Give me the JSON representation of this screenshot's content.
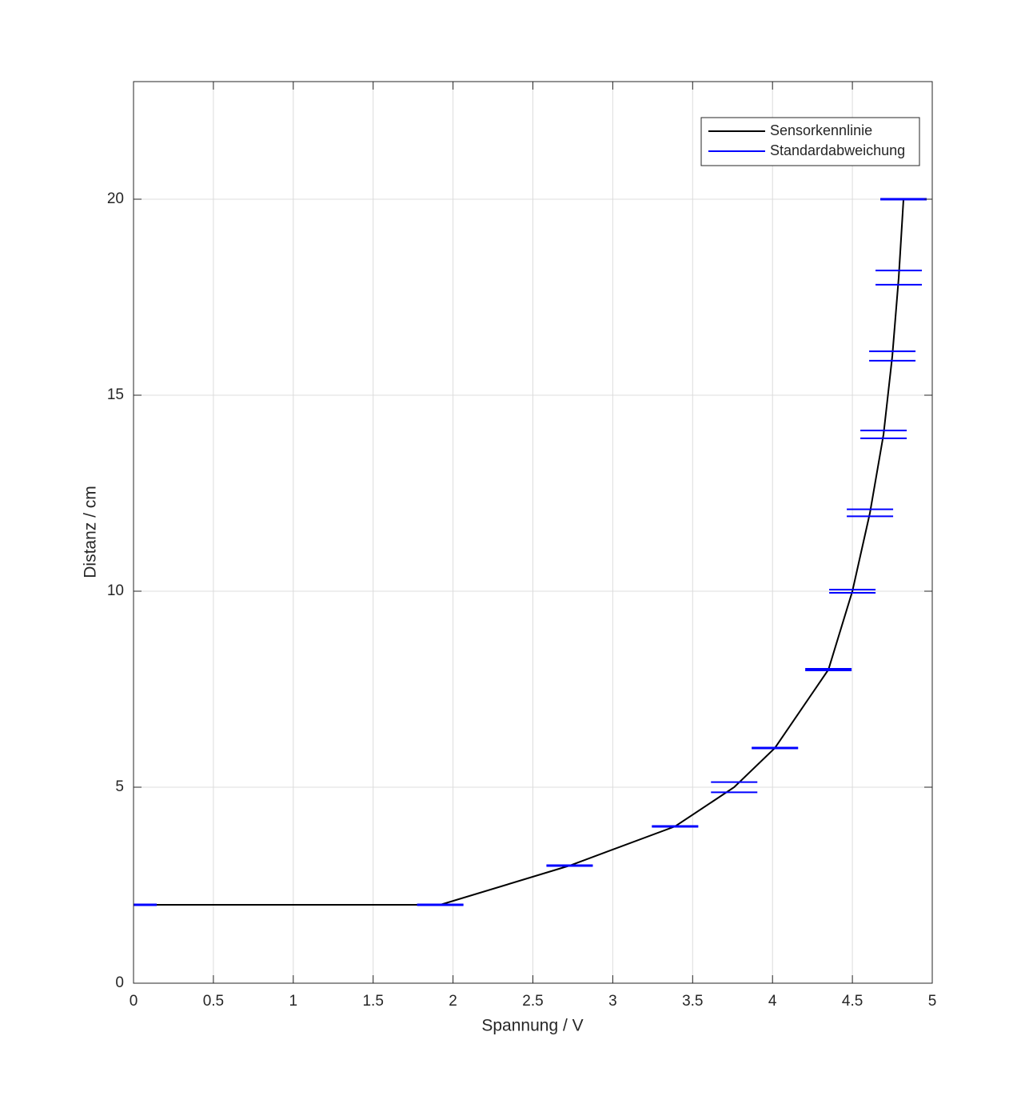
{
  "chart_data": {
    "type": "errorline",
    "x_label": "Spannung / V",
    "y_label": "Distanz / cm",
    "x": [
      0,
      1.92,
      2.73,
      3.39,
      3.76,
      4.015,
      4.35,
      4.5,
      4.61,
      4.695,
      4.75,
      4.79,
      4.82
    ],
    "series": [
      {
        "name": "Sensorkennlinie",
        "color": "#000000",
        "values": [
          2,
          2,
          3,
          4,
          5,
          6,
          8,
          10,
          12,
          14,
          16,
          18,
          20
        ]
      },
      {
        "name": "Standardabweichung",
        "color": "#0000ff",
        "errors": [
          0.01,
          0.01,
          0.01,
          0.01,
          0.13,
          0.01,
          0.02,
          0.04,
          0.09,
          0.1,
          0.12,
          0.18,
          0.01
        ]
      }
    ],
    "xlim": [
      0,
      5
    ],
    "ylim": [
      0,
      23
    ],
    "xticks": [
      0,
      0.5,
      1,
      1.5,
      2,
      2.5,
      3,
      3.5,
      4,
      4.5,
      5
    ],
    "yticks": [
      0,
      5,
      10,
      15,
      20
    ],
    "grid": true,
    "legend": "top-right"
  }
}
